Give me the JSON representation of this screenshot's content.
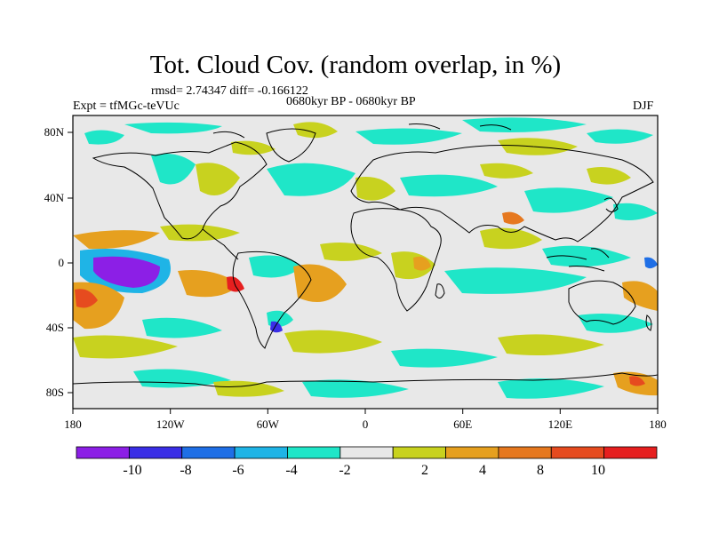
{
  "title": "Tot. Cloud Cov. (random overlap, in %)",
  "stats": "rmsd= 2.74347 diff= -0.166122",
  "experiment": "Expt = tfMGc-teVUc",
  "period": "0680kyr BP - 0680kyr BP",
  "season": "DJF",
  "axes": {
    "x_ticks": [
      "180",
      "120W",
      "60W",
      "0",
      "60E",
      "120E",
      "180"
    ],
    "y_ticks": [
      "80N",
      "40N",
      "0",
      "40S",
      "80S"
    ]
  },
  "colorbar": {
    "labels": [
      "-10",
      "-8",
      "-6",
      "-4",
      "-2",
      "2",
      "4",
      "8",
      "10"
    ],
    "colors": [
      "#8c1fe6",
      "#3a2ee6",
      "#1f6fe6",
      "#1fb4e6",
      "#1fe6c8",
      "#e8e8e8",
      "#c8d21f",
      "#e6a01f",
      "#e6781f",
      "#e64b1f",
      "#e61f1f"
    ]
  }
}
